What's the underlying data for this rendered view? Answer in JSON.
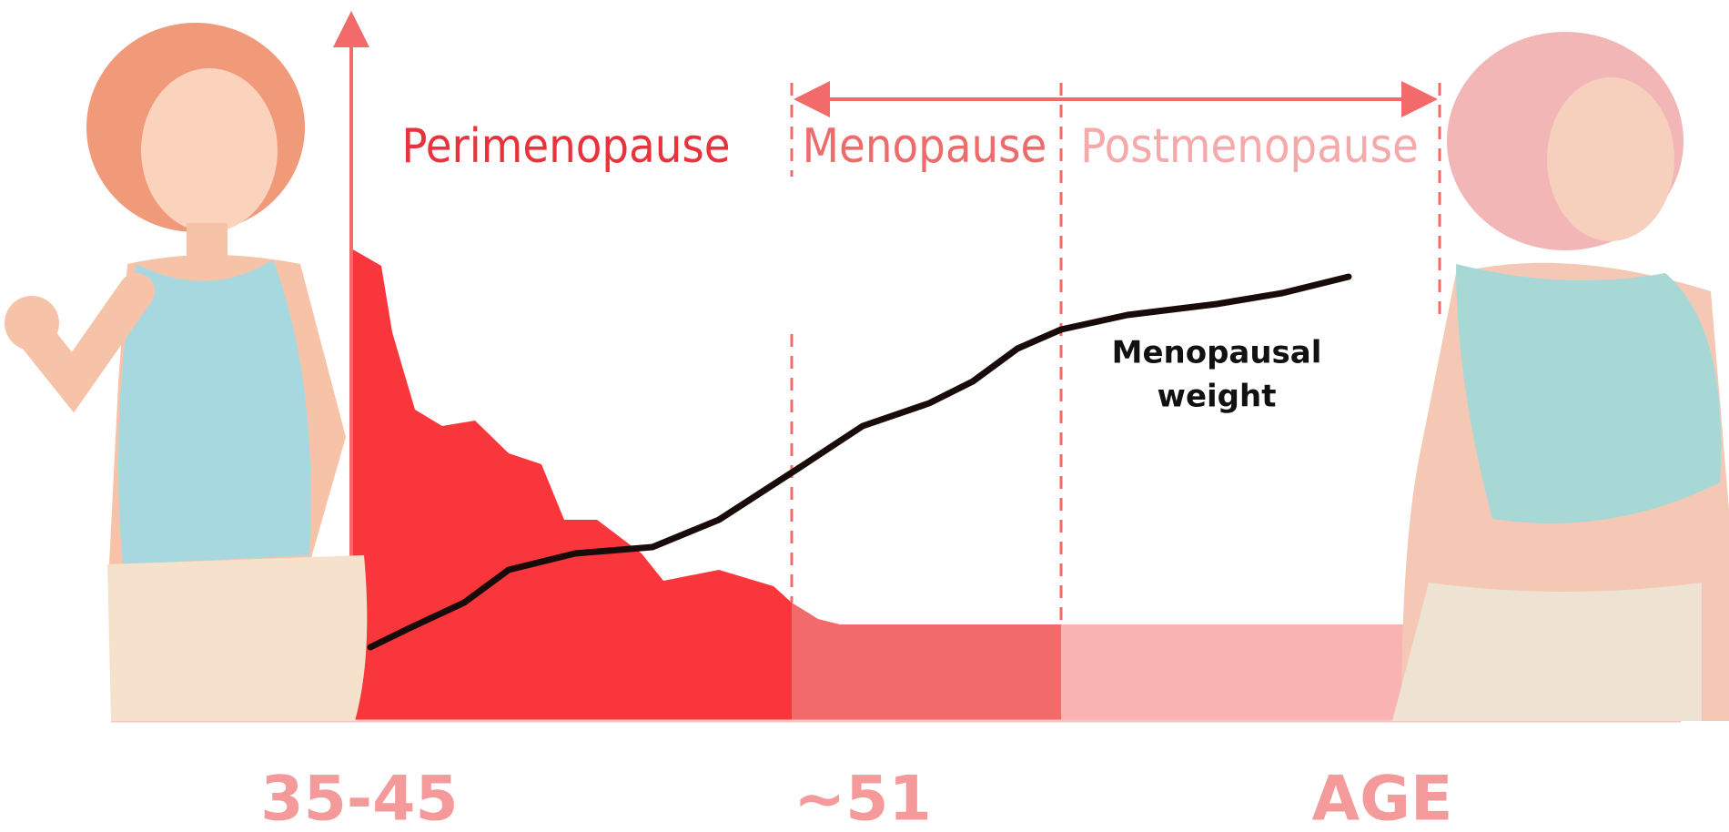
{
  "phases": [
    {
      "label": "Perimenopause"
    },
    {
      "label": "Menopause"
    },
    {
      "label": "Postmenopause"
    }
  ],
  "curve_label": [
    "Menopausal",
    "weight"
  ],
  "age_labels": [
    "35-45",
    "~51",
    "AGE"
  ]
}
